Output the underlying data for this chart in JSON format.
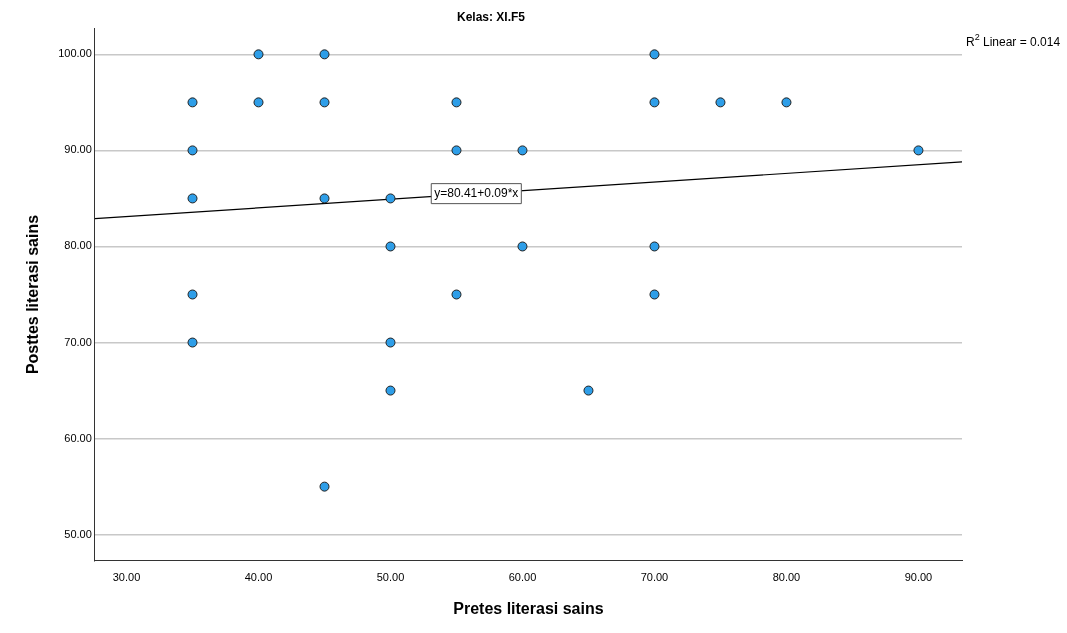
{
  "chart_data": {
    "type": "scatter",
    "title": "Kelas: XI.F5",
    "xlabel": "Pretes literasi sains",
    "ylabel": "Posttes literasi sains",
    "xlim": [
      27.6,
      93.3
    ],
    "xticks": [
      {
        "value": 30,
        "label": "30.00"
      },
      {
        "value": 40,
        "label": "40.00"
      },
      {
        "value": 50,
        "label": "50.00"
      },
      {
        "value": 60,
        "label": "60.00"
      },
      {
        "value": 70,
        "label": "70.00"
      },
      {
        "value": 80,
        "label": "80.00"
      },
      {
        "value": 90,
        "label": "90.00"
      }
    ],
    "ylim": [
      47.3,
      102.7
    ],
    "yticks": [
      {
        "value": 50,
        "label": "50.00"
      },
      {
        "value": 60,
        "label": "60.00"
      },
      {
        "value": 70,
        "label": "70.00"
      },
      {
        "value": 80,
        "label": "80.00"
      },
      {
        "value": 90,
        "label": "90.00"
      },
      {
        "value": 100,
        "label": "100.00"
      }
    ],
    "grid": "y",
    "legend": false,
    "marker": "circle",
    "series": [
      {
        "color": "#2e9ee8",
        "x": [
          35,
          35,
          35,
          35,
          35,
          40,
          40,
          45,
          45,
          45,
          45,
          50,
          50,
          50,
          50,
          55,
          55,
          55,
          60,
          60,
          65,
          70,
          70,
          70,
          70,
          75,
          80,
          90
        ],
        "values": [
          95,
          90,
          85,
          75,
          70,
          100,
          95,
          100,
          95,
          85,
          55,
          85,
          80,
          70,
          65,
          95,
          90,
          75,
          90,
          80,
          65,
          100,
          95,
          80,
          75,
          95,
          95,
          90
        ]
      },
      {
        "type": "line",
        "color": "#000000",
        "marker": "none",
        "x": [
          27.6,
          93.3
        ],
        "values": [
          82.9,
          88.8
        ]
      }
    ],
    "annotations": [
      "R$^{2}$ Linear = 0.014",
      {
        "text": "y=80.41+0.09*x",
        "x": 56.5,
        "y": 85.5
      }
    ]
  }
}
